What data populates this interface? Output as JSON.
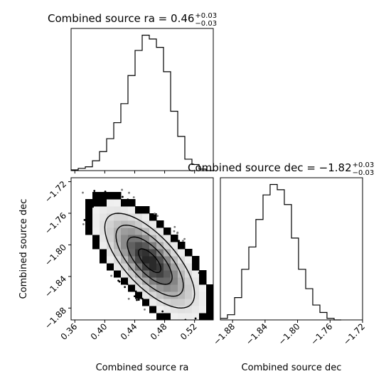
{
  "chart_data": [
    {
      "type": "histogram",
      "panel": "ra marginal",
      "title": {
        "text": "Combined source ra = 0.46",
        "sup": "+0.03",
        "sub": "−0.03"
      },
      "xlim": [
        0.355,
        0.545
      ],
      "bins": [
        {
          "x0": 0.355,
          "x1": 0.3645,
          "count": 1
        },
        {
          "x0": 0.3645,
          "x1": 0.374,
          "count": 3
        },
        {
          "x0": 0.374,
          "x1": 0.3835,
          "count": 5
        },
        {
          "x0": 0.3835,
          "x1": 0.393,
          "count": 13
        },
        {
          "x0": 0.393,
          "x1": 0.4025,
          "count": 25
        },
        {
          "x0": 0.4025,
          "x1": 0.412,
          "count": 42
        },
        {
          "x0": 0.412,
          "x1": 0.4215,
          "count": 63
        },
        {
          "x0": 0.4215,
          "x1": 0.431,
          "count": 88
        },
        {
          "x0": 0.431,
          "x1": 0.4405,
          "count": 125
        },
        {
          "x0": 0.4405,
          "x1": 0.45,
          "count": 158
        },
        {
          "x0": 0.45,
          "x1": 0.4595,
          "count": 178
        },
        {
          "x0": 0.4595,
          "x1": 0.469,
          "count": 173
        },
        {
          "x0": 0.469,
          "x1": 0.4785,
          "count": 162
        },
        {
          "x0": 0.4785,
          "x1": 0.488,
          "count": 130
        },
        {
          "x0": 0.488,
          "x1": 0.4975,
          "count": 78
        },
        {
          "x0": 0.4975,
          "x1": 0.507,
          "count": 45
        },
        {
          "x0": 0.507,
          "x1": 0.5165,
          "count": 15
        },
        {
          "x0": 0.5165,
          "x1": 0.526,
          "count": 8
        },
        {
          "x0": 0.526,
          "x1": 0.5355,
          "count": 2
        },
        {
          "x0": 0.5355,
          "x1": 0.545,
          "count": 0
        }
      ]
    },
    {
      "type": "histogram",
      "panel": "dec marginal",
      "title": {
        "text": "Combined source dec = −1.82",
        "sup": "+0.03",
        "sub": "−0.03"
      },
      "xlim": [
        -1.895,
        -1.72
      ],
      "xticks": [
        -1.88,
        -1.84,
        -1.8,
        -1.76,
        -1.72
      ],
      "xticklabels": [
        "−1.88",
        "−1.84",
        "−1.80",
        "−1.76",
        "−1.72"
      ],
      "xlabel": "Combined source dec",
      "bins": [
        {
          "x0": -1.895,
          "x1": -1.8863,
          "count": 2
        },
        {
          "x0": -1.8863,
          "x1": -1.8775,
          "count": 7
        },
        {
          "x0": -1.8775,
          "x1": -1.8688,
          "count": 30
        },
        {
          "x0": -1.8688,
          "x1": -1.86,
          "count": 68
        },
        {
          "x0": -1.86,
          "x1": -1.8513,
          "count": 98
        },
        {
          "x0": -1.8513,
          "x1": -1.8425,
          "count": 135
        },
        {
          "x0": -1.8425,
          "x1": -1.8338,
          "count": 168
        },
        {
          "x0": -1.8338,
          "x1": -1.825,
          "count": 182
        },
        {
          "x0": -1.825,
          "x1": -1.8163,
          "count": 175
        },
        {
          "x0": -1.8163,
          "x1": -1.8075,
          "count": 155
        },
        {
          "x0": -1.8075,
          "x1": -1.7988,
          "count": 110
        },
        {
          "x0": -1.7988,
          "x1": -1.79,
          "count": 68
        },
        {
          "x0": -1.79,
          "x1": -1.7813,
          "count": 42
        },
        {
          "x0": -1.7813,
          "x1": -1.7725,
          "count": 20
        },
        {
          "x0": -1.7725,
          "x1": -1.7638,
          "count": 10
        },
        {
          "x0": -1.7638,
          "x1": -1.755,
          "count": 2
        },
        {
          "x0": -1.755,
          "x1": -1.7463,
          "count": 0
        }
      ]
    },
    {
      "type": "heatmap",
      "panel": "2d density with contours",
      "xlim": [
        0.355,
        0.545
      ],
      "ylim": [
        -1.895,
        -1.715
      ],
      "xticks": [
        0.36,
        0.4,
        0.44,
        0.48,
        0.52
      ],
      "xticklabels": [
        "0.36",
        "0.40",
        "0.44",
        "0.48",
        "0.52"
      ],
      "yticks": [
        -1.72,
        -1.76,
        -1.8,
        -1.84,
        -1.88
      ],
      "yticklabels": [
        "−1.72",
        "−1.76",
        "−1.80",
        "−1.84",
        "−1.88"
      ],
      "xlabel": "Combined source ra",
      "ylabel": "Combined source dec",
      "center": [
        0.46,
        -1.82
      ],
      "sigma": [
        0.03,
        0.03
      ],
      "correlation": -0.7,
      "contour_levels_sigma": [
        0.5,
        1.0,
        1.5,
        2.0
      ]
    }
  ]
}
